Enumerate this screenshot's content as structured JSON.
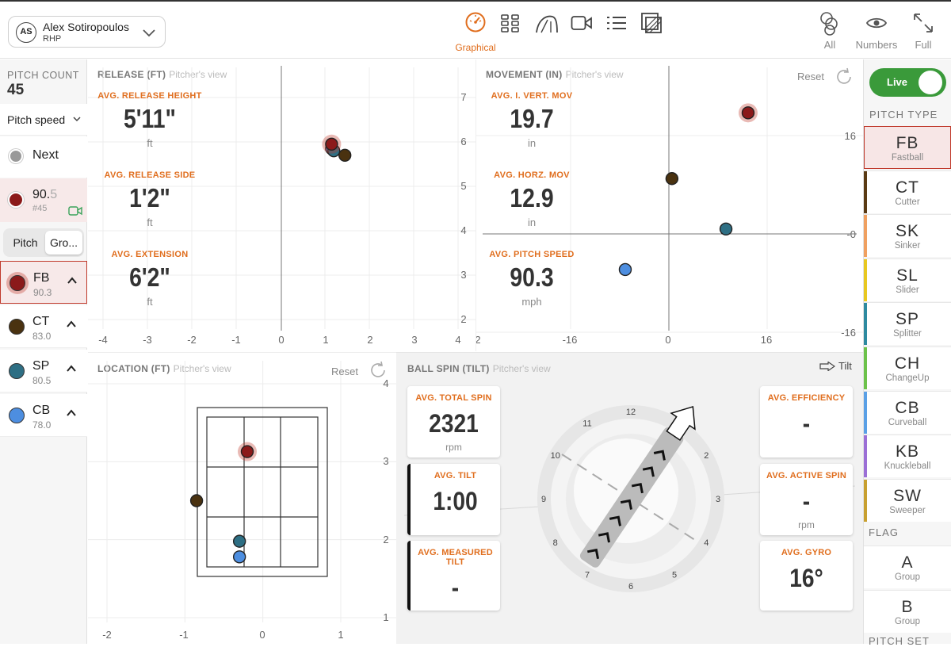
{
  "player": {
    "initials": "AS",
    "name": "Alex Sotiropoulos",
    "hand": "RHP"
  },
  "topnav": {
    "graphical": "Graphical",
    "all": "All",
    "numbers": "Numbers",
    "full": "Full"
  },
  "left": {
    "pitch_count_label": "PITCH COUNT",
    "pitch_count": "45",
    "metric_select": "Pitch speed",
    "next_label": "Next",
    "last_pitch": {
      "speed_main": "90.",
      "speed_dim": "5",
      "number": "#45",
      "color": "#8b1a1a"
    },
    "toggle": {
      "pitch": "Pitch",
      "group": "Gro..."
    },
    "pitches": [
      {
        "abbr": "FB",
        "speed": "90.3",
        "color": "#8b1a1a"
      },
      {
        "abbr": "CT",
        "speed": "83.0",
        "color": "#4a3210"
      },
      {
        "abbr": "SP",
        "speed": "80.5",
        "color": "#2e6f84"
      },
      {
        "abbr": "CB",
        "speed": "78.0",
        "color": "#4d8ee0"
      }
    ]
  },
  "release": {
    "title": "RELEASE (FT)",
    "subtitle": "Pitcher's view",
    "stats": [
      {
        "label": "AVG. RELEASE HEIGHT",
        "value": "5'11\"",
        "unit": "ft"
      },
      {
        "label": "AVG. RELEASE SIDE",
        "value": "1'2\"",
        "unit": "ft"
      },
      {
        "label": "AVG. EXTENSION",
        "value": "6'2\"",
        "unit": "ft"
      }
    ]
  },
  "movement": {
    "title": "MOVEMENT (IN)",
    "subtitle": "Pitcher's view",
    "reset": "Reset",
    "stats": [
      {
        "label": "AVG. I. VERT. MOV",
        "value": "19.7",
        "unit": "in"
      },
      {
        "label": "AVG. HORZ. MOV",
        "value": "12.9",
        "unit": "in"
      },
      {
        "label": "AVG. PITCH SPEED",
        "value": "90.3",
        "unit": "mph"
      }
    ]
  },
  "location": {
    "title": "LOCATION (FT)",
    "subtitle": "Pitcher's view",
    "reset": "Reset"
  },
  "spin": {
    "title": "BALL SPIN (TILT)",
    "subtitle": "Pitcher's view",
    "tilt_label": "Tilt",
    "clock": [
      "12",
      "1",
      "2",
      "3",
      "4",
      "5",
      "6",
      "7",
      "8",
      "9",
      "10",
      "11"
    ],
    "cards_left": [
      {
        "label": "AVG. TOTAL SPIN",
        "value": "2321",
        "unit": "rpm"
      },
      {
        "label": "AVG. TILT",
        "value": "1:00",
        "unit": ""
      },
      {
        "label": "AVG. MEASURED TILT",
        "value": "-",
        "unit": ""
      }
    ],
    "cards_right": [
      {
        "label": "AVG. EFFICIENCY",
        "value": "-",
        "unit": ""
      },
      {
        "label": "AVG. ACTIVE SPIN",
        "value": "-",
        "unit": "rpm"
      },
      {
        "label": "AVG. GYRO",
        "value": "16°",
        "unit": ""
      }
    ]
  },
  "right": {
    "live_label": "Live",
    "pitch_type_label": "PITCH TYPE",
    "types": [
      {
        "abbr": "FB",
        "full": "Fastball",
        "color": "#c0392b"
      },
      {
        "abbr": "CT",
        "full": "Cutter",
        "color": "#5a3a14"
      },
      {
        "abbr": "SK",
        "full": "Sinker",
        "color": "#f0a060"
      },
      {
        "abbr": "SL",
        "full": "Slider",
        "color": "#e8c820"
      },
      {
        "abbr": "SP",
        "full": "Splitter",
        "color": "#2e8aa0"
      },
      {
        "abbr": "CH",
        "full": "ChangeUp",
        "color": "#6cc24a"
      },
      {
        "abbr": "CB",
        "full": "Curveball",
        "color": "#5aa0e6"
      },
      {
        "abbr": "KB",
        "full": "Knuckleball",
        "color": "#9b6fd6"
      },
      {
        "abbr": "SW",
        "full": "Sweeper",
        "color": "#c8a030"
      }
    ],
    "flag_label": "FLAG",
    "flags": [
      {
        "abbr": "A",
        "full": "Group"
      },
      {
        "abbr": "B",
        "full": "Group"
      }
    ],
    "pitch_set_label": "PITCH SET"
  },
  "chart_data": [
    {
      "type": "scatter",
      "name": "release",
      "xlim": [
        -4,
        4
      ],
      "ylim": [
        2,
        7
      ],
      "x_ticks": [
        "-4",
        "-3",
        "-2",
        "-1",
        "0",
        "1",
        "2",
        "3",
        "4"
      ],
      "y_ticks": [
        "2",
        "3",
        "4",
        "5",
        "6",
        "7"
      ],
      "points": [
        {
          "pitch": "CB",
          "x": 1.15,
          "y": 5.85
        },
        {
          "pitch": "SP",
          "x": 1.2,
          "y": 5.8
        },
        {
          "pitch": "CT",
          "x": 1.45,
          "y": 5.7
        },
        {
          "pitch": "FB",
          "x": 1.15,
          "y": 5.95,
          "highlight": true
        }
      ]
    },
    {
      "type": "scatter",
      "name": "movement",
      "xlim": [
        -32,
        32
      ],
      "ylim": [
        -16,
        16
      ],
      "x_ticks": [
        "2",
        "-16",
        "0",
        "16"
      ],
      "y_ticks": [
        "16",
        "-0",
        "-16"
      ],
      "points": [
        {
          "pitch": "CT",
          "x": 0.5,
          "y": 9
        },
        {
          "pitch": "SP",
          "x": 9.3,
          "y": 0.8
        },
        {
          "pitch": "CB",
          "x": -7.1,
          "y": -5.8
        },
        {
          "pitch": "FB",
          "x": 12.9,
          "y": 19.7,
          "highlight": true
        }
      ]
    },
    {
      "type": "scatter",
      "name": "location",
      "xlim": [
        -2,
        1
      ],
      "ylim": [
        1,
        4
      ],
      "x_ticks": [
        "-2",
        "-1",
        "0",
        "1"
      ],
      "y_ticks": [
        "4",
        "3",
        "2",
        "1"
      ],
      "points": [
        {
          "pitch": "CT",
          "x": -0.85,
          "y": 2.5
        },
        {
          "pitch": "SP",
          "x": -0.3,
          "y": 1.98
        },
        {
          "pitch": "CB",
          "x": -0.3,
          "y": 1.78
        },
        {
          "pitch": "FB",
          "x": -0.2,
          "y": 3.13,
          "highlight": true
        }
      ]
    }
  ]
}
